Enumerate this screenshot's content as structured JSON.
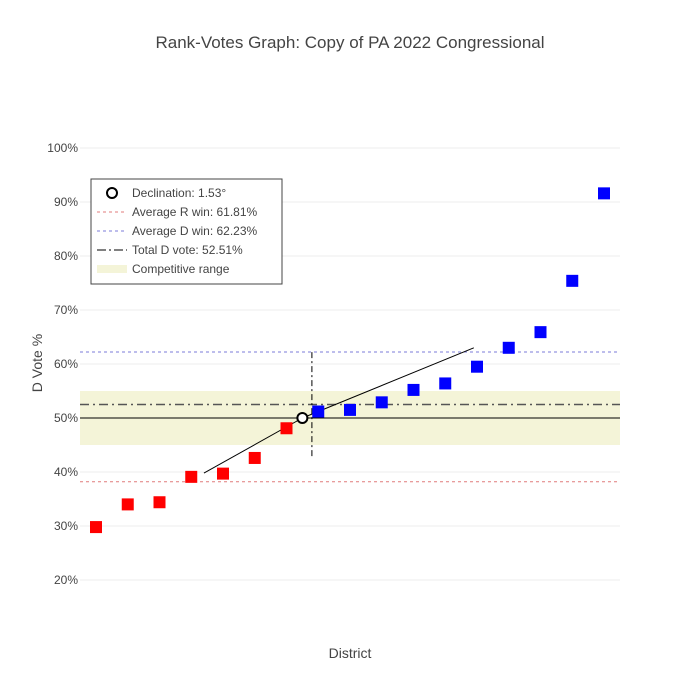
{
  "chart_data": {
    "type": "scatter",
    "title": "Rank-Votes Graph: Copy of PA 2022 Congressional",
    "xlabel": "District",
    "ylabel": "D Vote %",
    "ylim": [
      0.2,
      1.0
    ],
    "yticks": [
      0.2,
      0.3,
      0.4,
      0.5,
      0.6,
      0.7,
      0.8,
      0.9,
      1.0
    ],
    "ytick_labels": [
      "20%",
      "30%",
      "40%",
      "50%",
      "60%",
      "70%",
      "80%",
      "90%",
      "100%"
    ],
    "grid": true,
    "legend_position": "top-left",
    "districts": [
      {
        "rank": 1,
        "value": 0.298,
        "party": "R"
      },
      {
        "rank": 2,
        "value": 0.34,
        "party": "R"
      },
      {
        "rank": 3,
        "value": 0.344,
        "party": "R"
      },
      {
        "rank": 4,
        "value": 0.391,
        "party": "R"
      },
      {
        "rank": 5,
        "value": 0.397,
        "party": "R"
      },
      {
        "rank": 6,
        "value": 0.426,
        "party": "R"
      },
      {
        "rank": 7,
        "value": 0.481,
        "party": "R"
      },
      {
        "rank": 8,
        "value": 0.512,
        "party": "D"
      },
      {
        "rank": 9,
        "value": 0.515,
        "party": "D"
      },
      {
        "rank": 10,
        "value": 0.529,
        "party": "D"
      },
      {
        "rank": 11,
        "value": 0.552,
        "party": "D"
      },
      {
        "rank": 12,
        "value": 0.564,
        "party": "D"
      },
      {
        "rank": 13,
        "value": 0.595,
        "party": "D"
      },
      {
        "rank": 14,
        "value": 0.63,
        "party": "D"
      },
      {
        "rank": 15,
        "value": 0.659,
        "party": "D"
      },
      {
        "rank": 16,
        "value": 0.754,
        "party": "D"
      },
      {
        "rank": 17,
        "value": 0.916,
        "party": "D"
      }
    ],
    "declination": {
      "label": "Declination: 1.53°",
      "point": {
        "rank": 7.5,
        "value": 0.5
      }
    },
    "average_r_win": {
      "label": "Average R win: 61.81%",
      "value": 0.3819
    },
    "average_d_win": {
      "label": "Average D win: 62.23%",
      "value": 0.6223
    },
    "total_d_vote": {
      "label": "Total D vote: 52.51%",
      "value": 0.5251
    },
    "competitive_range": {
      "label": "Competitive range",
      "range": [
        0.45,
        0.55
      ]
    },
    "midline": 0.5,
    "declination_r_line": {
      "from": {
        "rank": 4.4,
        "value": 0.398
      },
      "to": {
        "rank": 7.5,
        "value": 0.5
      }
    },
    "declination_d_line": {
      "from": {
        "rank": 7.5,
        "value": 0.5
      },
      "to": {
        "rank": 12.9,
        "value": 0.63
      }
    },
    "seat_divider": {
      "rank": 7.8,
      "value_range": [
        0.425,
        0.622
      ]
    },
    "colors": {
      "republican": "#ff0000",
      "democrat": "#0000ff",
      "competitive_band": "#f4f4d8",
      "average_r_line": "#e07b7b",
      "average_d_line": "#7b7bd9",
      "total_d_line": "#555555",
      "grid": "#eeeeee"
    }
  }
}
